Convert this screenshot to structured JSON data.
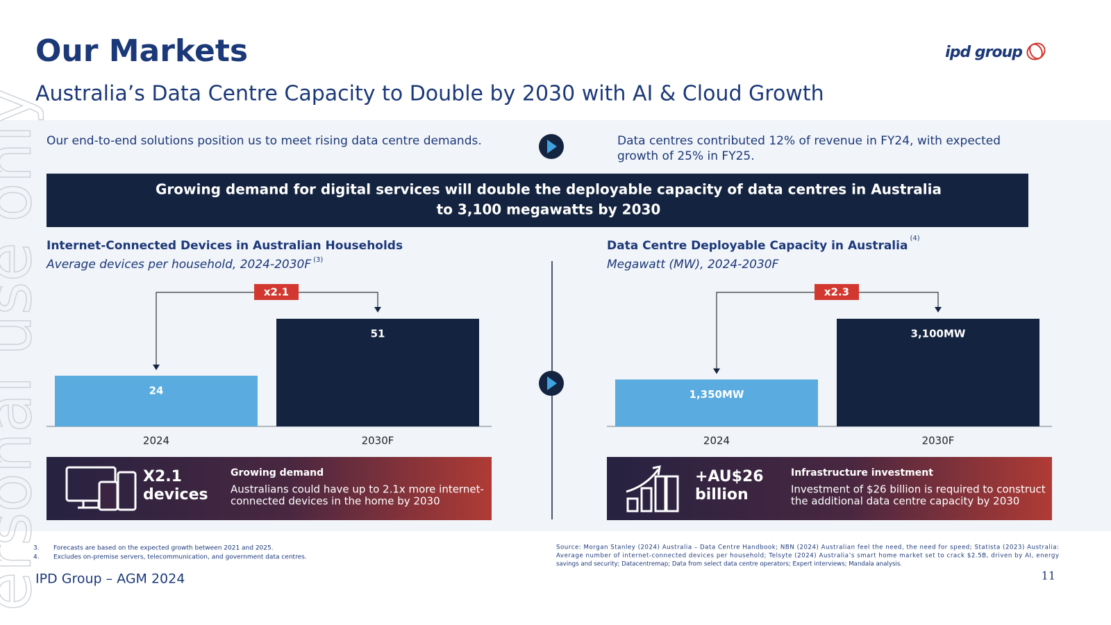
{
  "header": {
    "title": "Our Markets",
    "subtitle": "Australia’s Data Centre Capacity to Double by 2030 with AI & Cloud Growth",
    "logo": "ipd group"
  },
  "watermark": "ersonal use only",
  "intro": {
    "left": "Our end-to-end solutions position us to meet rising data centre demands.",
    "right": [
      "Data centres contributed 12% of revenue in FY24, with expected",
      "growth of 25% in FY25."
    ]
  },
  "banner": [
    "Growing demand for digital services will double the deployable capacity of data centres in Australia",
    "to 3,100 megawatts by 2030"
  ],
  "chart_data": [
    {
      "type": "bar",
      "title": "Internet-Connected Devices in Australian Households",
      "subtitle": "Average devices per household, 2024-2030F",
      "subtitle_note": "(3)",
      "categories": [
        "2024",
        "2030F"
      ],
      "values": [
        24,
        51
      ],
      "colors": [
        "#5aabdf",
        "#14233f"
      ],
      "multiplier": "x2.1"
    },
    {
      "type": "bar",
      "title": "Data Centre Deployable Capacity in Australia",
      "title_note": "(4)",
      "subtitle": "Megawatt (MW), 2024-2030F",
      "categories": [
        "2024",
        "2030F"
      ],
      "values": [
        1350,
        3100
      ],
      "value_labels": [
        "1,350MW",
        "3,100MW"
      ],
      "colors": [
        "#5aabdf",
        "#14233f"
      ],
      "multiplier": "x2.3"
    }
  ],
  "cards": [
    {
      "big": [
        "X2.1",
        "devices"
      ],
      "title": "Growing demand",
      "text": [
        "Australians could have up to 2.1x more internet-",
        "connected devices in the home by 2030"
      ]
    },
    {
      "big": [
        "+AU$26",
        "billion"
      ],
      "title": "Infrastructure investment",
      "text": [
        "Investment of $26 billion is required to construct",
        "the additional data centre capacity by 2030"
      ]
    }
  ],
  "footnotes": [
    {
      "num": "3.",
      "text": "Forecasts are based on the expected growth between 2021  and 2025."
    },
    {
      "num": "4.",
      "text": "Excludes on-premise servers, telecommunication, and government data centres."
    }
  ],
  "source": [
    "Source: Morgan Stanley (2024) Australia – Data Centre Handbook; NBN (2024) Australian feel the need, the need for speed; Statista (2023) Australia:",
    "Average number of internet-connected devices per household; Telsyte (2024) Australia’s smart home market set to crack $2.5B, driven by AI, energy",
    "savings and security; Datacentremap; Data from select data centre operators; Expert interviews; Mandala analysis."
  ],
  "footer": {
    "left": "IPD Group – AGM 2024",
    "page": "11"
  }
}
